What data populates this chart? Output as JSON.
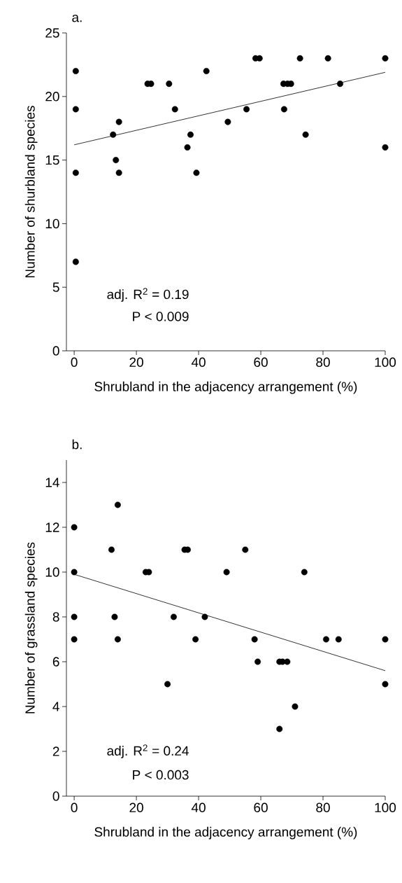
{
  "chart_data": [
    {
      "type": "scatter",
      "title": "a.",
      "xlabel": "Shrubland in the adjacency arrangement (%)",
      "ylabel": "Number of shurbland species",
      "annotations": [
        "adj. R$^{2}$ = 0.19",
        "P < 0.009"
      ],
      "xlim": [
        -2.5,
        100
      ],
      "ylim": [
        0,
        25
      ],
      "xticks": [
        0,
        20,
        40,
        60,
        80,
        100
      ],
      "yticks": [
        0,
        5,
        10,
        15,
        20,
        25
      ],
      "series": [
        {
          "marker": "circle",
          "color": "#000000",
          "x": [
            0.5,
            0.5,
            0.5,
            0.5,
            12.5,
            13.4,
            14.4,
            14.4,
            23.6,
            24.7,
            30.5,
            32.4,
            36.4,
            37.4,
            39.3,
            42.5,
            49.4,
            55.4,
            58.3,
            59.6,
            67.5,
            67.3,
            68.6,
            69.7,
            72.6,
            74.4,
            81.6,
            85.5,
            100,
            100
          ],
          "values": [
            22,
            19,
            14,
            7,
            17,
            15,
            14,
            18,
            21,
            21,
            21,
            19,
            16,
            17,
            14,
            22,
            18,
            19,
            23,
            23,
            19,
            21,
            21,
            21,
            23,
            17,
            23,
            21,
            23,
            16
          ]
        },
        {
          "type": "line",
          "marker": "none",
          "color": "#000000",
          "x": [
            0,
            100
          ],
          "values": [
            16.2,
            21.9
          ]
        }
      ]
    },
    {
      "type": "scatter",
      "title": "b.",
      "xlabel": "Shrubland in the adjacency arrangement (%)",
      "ylabel": "Number of grassland species",
      "annotations": [
        "adj. R$^{2}$ = 0.24",
        "P < 0.003"
      ],
      "xlim": [
        -2.5,
        100
      ],
      "ylim": [
        0,
        15
      ],
      "xticks": [
        0,
        20,
        40,
        60,
        80,
        100
      ],
      "yticks": [
        0,
        2,
        4,
        6,
        8,
        10,
        12,
        14
      ],
      "series": [
        {
          "marker": "circle",
          "color": "#000000",
          "x": [
            14,
            0,
            12,
            35.5,
            36.5,
            55,
            0,
            23,
            24,
            49,
            74,
            0,
            13,
            32,
            42,
            0,
            14,
            39,
            58,
            81,
            85,
            100,
            59,
            66,
            67,
            68.5,
            30,
            100,
            71,
            66
          ],
          "values": [
            13,
            12,
            11,
            11,
            11,
            11,
            10,
            10,
            10,
            10,
            10,
            8,
            8,
            8,
            8,
            7,
            7,
            7,
            7,
            7,
            7,
            7,
            6,
            6,
            6,
            6,
            5,
            5,
            4,
            3
          ]
        },
        {
          "type": "line",
          "marker": "none",
          "color": "#000000",
          "x": [
            0,
            100
          ],
          "values": [
            9.9,
            5.6
          ]
        }
      ]
    }
  ]
}
